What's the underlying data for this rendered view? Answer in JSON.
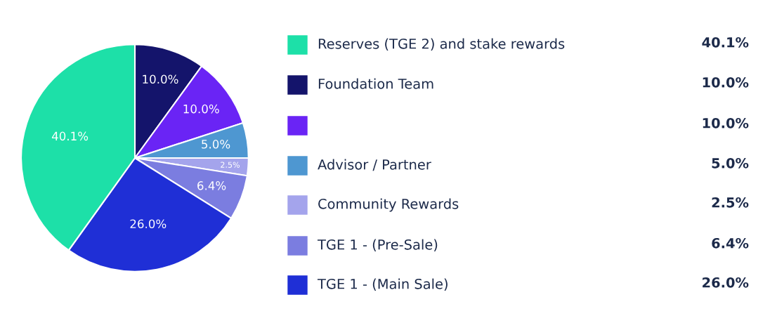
{
  "chart_data": {
    "type": "pie",
    "categories": [
      "Reserves (TGE 2) and stake rewards",
      "Foundation Team",
      null,
      "Advisor / Partner",
      "Community Rewards",
      "TGE 1 - (Pre-Sale)",
      "TGE 1 - (Main Sale)"
    ],
    "values": [
      40.1,
      10.0,
      10.0,
      5.0,
      2.5,
      6.4,
      26.0
    ],
    "value_labels": [
      "40.1%",
      "10.0%",
      "10.0%",
      "5.0%",
      "2.5%",
      "6.4%",
      "26.0%"
    ],
    "colors": [
      "#1de0a8",
      "#14146b",
      "#6a24f5",
      "#4e97d1",
      "#a4a4ec",
      "#7b7de0",
      "#1f2fd6"
    ],
    "legend": "right"
  }
}
